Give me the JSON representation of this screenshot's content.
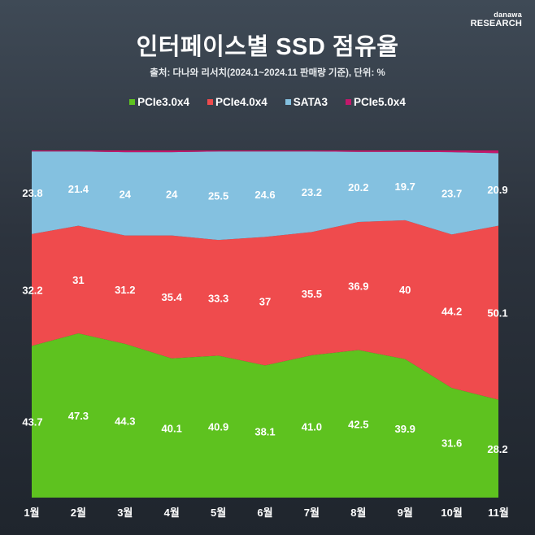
{
  "brand": {
    "line1": "danawa",
    "line2": "RESEARCH"
  },
  "title": "인터페이스별 SSD 점유율",
  "source": "출처: 다나와 리서치(2024.1~2024.11 판매량 기준), 단위: %",
  "chart_data": {
    "type": "area",
    "stacked": true,
    "categories": [
      "1월",
      "2월",
      "3월",
      "4월",
      "5월",
      "6월",
      "7월",
      "8월",
      "9월",
      "10월",
      "11월"
    ],
    "series": [
      {
        "name": "PCIe3.0x4",
        "color": "#5ec21f",
        "values": [
          43.7,
          47.3,
          44.3,
          40.1,
          40.9,
          38.1,
          41.0,
          42.5,
          39.9,
          31.6,
          28.2
        ],
        "labels": [
          "43.7",
          "47.3",
          "44.3",
          "40.1",
          "40.9",
          "38.1",
          "41.0",
          "42.5",
          "39.9",
          "31.6",
          "28.2"
        ]
      },
      {
        "name": "PCIe4.0x4",
        "color": "#ef4b4d",
        "values": [
          32.2,
          31,
          31.2,
          35.4,
          33.3,
          37,
          35.5,
          36.9,
          40,
          44.2,
          50.1
        ],
        "labels": [
          "32.2",
          "31",
          "31.2",
          "35.4",
          "33.3",
          "37",
          "35.5",
          "36.9",
          "40",
          "44.2",
          "50.1"
        ]
      },
      {
        "name": "SATA3",
        "color": "#84c1e0",
        "values": [
          23.8,
          21.4,
          24,
          24,
          25.5,
          24.6,
          23.2,
          20.2,
          19.7,
          23.7,
          20.9
        ],
        "labels": [
          "23.8",
          "21.4",
          "24",
          "24",
          "25.5",
          "24.6",
          "23.2",
          "20.2",
          "19.7",
          "23.7",
          "20.9"
        ]
      },
      {
        "name": "PCIe5.0x4",
        "color": "#c2186b",
        "values": [
          0.3,
          0.3,
          0.5,
          0.5,
          0.3,
          0.3,
          0.3,
          0.4,
          0.4,
          0.5,
          0.8
        ],
        "labels": []
      }
    ],
    "ylim": [
      0,
      100
    ],
    "xlabel": "",
    "ylabel": "",
    "legend": "top-center",
    "grid": false
  }
}
